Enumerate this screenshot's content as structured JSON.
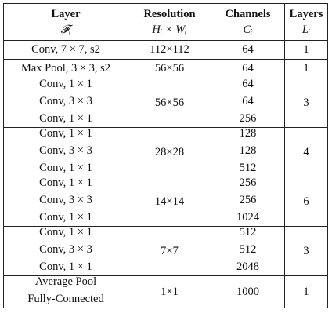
{
  "headers": [
    {
      "title": "Layer",
      "symbol": "𝓕ᵢ"
    },
    {
      "title": "Resolution",
      "symbol": "Hᵢ × Wᵢ"
    },
    {
      "title": "Channels",
      "symbol": "Cᵢ"
    },
    {
      "title": "Layers",
      "symbol": "Lᵢ"
    }
  ],
  "rows": [
    {
      "layer": "Conv, 7 × 7, s2",
      "resolution": "112×112",
      "channels": "64",
      "layers": "1"
    },
    {
      "layer": "Max Pool, 3 × 3, s2",
      "resolution": "56×56",
      "channels": "64",
      "layers": "1"
    }
  ],
  "stages": [
    {
      "layers_list": [
        "Conv, 1 × 1",
        "Conv, 3 × 3",
        "Conv, 1 × 1"
      ],
      "resolution": "56×56",
      "channels_list": [
        "64",
        "64",
        "256"
      ],
      "layers": "3"
    },
    {
      "layers_list": [
        "Conv, 1 × 1",
        "Conv, 3 × 3",
        "Conv, 1 × 1"
      ],
      "resolution": "28×28",
      "channels_list": [
        "128",
        "128",
        "512"
      ],
      "layers": "4"
    },
    {
      "layers_list": [
        "Conv, 1 × 1",
        "Conv, 3 × 3",
        "Conv, 1 × 1"
      ],
      "resolution": "14×14",
      "channels_list": [
        "256",
        "256",
        "1024"
      ],
      "layers": "6"
    },
    {
      "layers_list": [
        "Conv, 1 × 1",
        "Conv, 3 × 3",
        "Conv, 1 × 1"
      ],
      "resolution": "7×7",
      "channels_list": [
        "512",
        "512",
        "2048"
      ],
      "layers": "3"
    }
  ],
  "final": {
    "layers_list": [
      "Average Pool",
      "Fully-Connected"
    ],
    "resolution": "1×1",
    "channels": "1000",
    "layers": "1"
  }
}
